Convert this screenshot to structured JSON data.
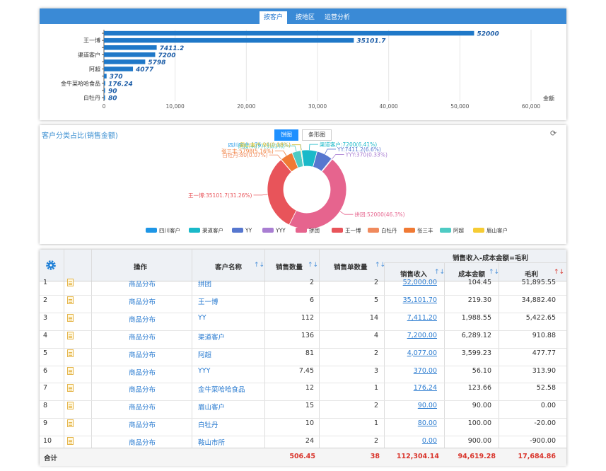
{
  "tabs": [
    "按客户",
    "按地区",
    "运营分析"
  ],
  "bar_chart": {
    "type": "bar",
    "orientation": "horizontal",
    "categories": [
      "",
      "王一博",
      "",
      "渠道客户",
      "",
      "阿超",
      "",
      "金牛菜哈哈食品",
      "",
      "白牡丹"
    ],
    "values": [
      52000,
      35101.7,
      7411.2,
      7200,
      5798,
      4077,
      370,
      176.24,
      90,
      80
    ],
    "value_labels": [
      "52000",
      "35101.7",
      "7411.2",
      "7200",
      "5798",
      "4077",
      "370",
      "176.24",
      "90",
      "80"
    ],
    "xlabel": "金额",
    "xticks": [
      "0",
      "10,000",
      "20,000",
      "30,000",
      "40,000",
      "50,000",
      "60,000"
    ],
    "xlim": [
      0,
      60000
    ],
    "colors": {
      "bar": "#1f78c8",
      "label": "#1f5fa8"
    }
  },
  "pie_panel": {
    "title": "客户分类占比(销售金额)",
    "toggle": [
      "饼图",
      "条形图"
    ],
    "refresh_icon": "refresh-icon",
    "chart": {
      "type": "pie",
      "donut": true,
      "slices": [
        {
          "name": "四川客户",
          "value": 176.24,
          "color": "#1e96e6",
          "label": "四川客户:176.24(0.16%)"
        },
        {
          "name": "渠道客户",
          "value": 7200,
          "color": "#1ab9c9",
          "label": "渠道客户:7200(6.41%)"
        },
        {
          "name": "YY",
          "value": 7411.2,
          "color": "#5677cf",
          "label": "YY:7411.2(6.6%)"
        },
        {
          "name": "YYY",
          "value": 370,
          "color": "#a97ed2",
          "label": "YYY:370(0.33%)"
        },
        {
          "name": "拼团",
          "value": 52000,
          "color": "#e6648e",
          "label": "拼团:52000(46.3%)"
        },
        {
          "name": "王一博",
          "value": 35101.7,
          "color": "#e8545a",
          "label": "王一博:35101.7(31.26%)"
        },
        {
          "name": "白牡丹",
          "value": 80,
          "color": "#f08a5d",
          "label": "白牡丹:80(0.07%)"
        },
        {
          "name": "张三丰",
          "value": 5798,
          "color": "#f07a34",
          "label": "张三丰:5798(5.16%)"
        },
        {
          "name": "阿超",
          "value": 4077,
          "color": "#4ecbc4",
          "label": "阿超:4077(3.63%)"
        },
        {
          "name": "眉山客户",
          "value": 90,
          "color": "#f6cc34",
          "label": "眉山客户:90(0.08%)"
        }
      ]
    }
  },
  "table": {
    "group_header": "销售收入-成本金额=毛利",
    "headers": {
      "op": "操作",
      "name": "客户名称",
      "qty": "销售数量",
      "orders": "销售单数量",
      "revenue": "销售收入",
      "cost": "成本金额",
      "profit": "毛利"
    },
    "rows": [
      {
        "idx": "1",
        "op": "商品分布",
        "name": "拼团",
        "qty": "2",
        "orders": "2",
        "revenue": "52,000.00",
        "cost": "104.45",
        "profit": "51,895.55"
      },
      {
        "idx": "2",
        "op": "商品分布",
        "name": "王一博",
        "qty": "6",
        "orders": "5",
        "revenue": "35,101.70",
        "cost": "219.30",
        "profit": "34,882.40"
      },
      {
        "idx": "3",
        "op": "商品分布",
        "name": "YY",
        "qty": "112",
        "orders": "14",
        "revenue": "7,411.20",
        "cost": "1,988.55",
        "profit": "5,422.65"
      },
      {
        "idx": "4",
        "op": "商品分布",
        "name": "渠道客户",
        "qty": "136",
        "orders": "4",
        "revenue": "7,200.00",
        "cost": "6,289.12",
        "profit": "910.88"
      },
      {
        "idx": "5",
        "op": "商品分布",
        "name": "阿超",
        "qty": "81",
        "orders": "2",
        "revenue": "4,077.00",
        "cost": "3,599.23",
        "profit": "477.77"
      },
      {
        "idx": "6",
        "op": "商品分布",
        "name": "YYY",
        "qty": "7.45",
        "orders": "3",
        "revenue": "370.00",
        "cost": "56.10",
        "profit": "313.90"
      },
      {
        "idx": "7",
        "op": "商品分布",
        "name": "金牛菜哈哈食品",
        "qty": "12",
        "orders": "1",
        "revenue": "176.24",
        "cost": "123.66",
        "profit": "52.58"
      },
      {
        "idx": "8",
        "op": "商品分布",
        "name": "眉山客户",
        "qty": "15",
        "orders": "2",
        "revenue": "90.00",
        "cost": "90.00",
        "profit": "0.00"
      },
      {
        "idx": "9",
        "op": "商品分布",
        "name": "白牡丹",
        "qty": "10",
        "orders": "1",
        "revenue": "80.00",
        "cost": "100.00",
        "profit": "-20.00"
      },
      {
        "idx": "10",
        "op": "商品分布",
        "name": "鞍山市所",
        "qty": "24",
        "orders": "2",
        "revenue": "0.00",
        "cost": "900.00",
        "profit": "-900.00"
      }
    ],
    "totals": {
      "label": "合计",
      "qty": "506.45",
      "orders": "38",
      "revenue": "112,304.14",
      "cost": "94,619.28",
      "profit": "17,684.86"
    },
    "settings_icon": "gear-icon",
    "sort_icon": "sort-icon",
    "row_icon": "document-icon"
  }
}
